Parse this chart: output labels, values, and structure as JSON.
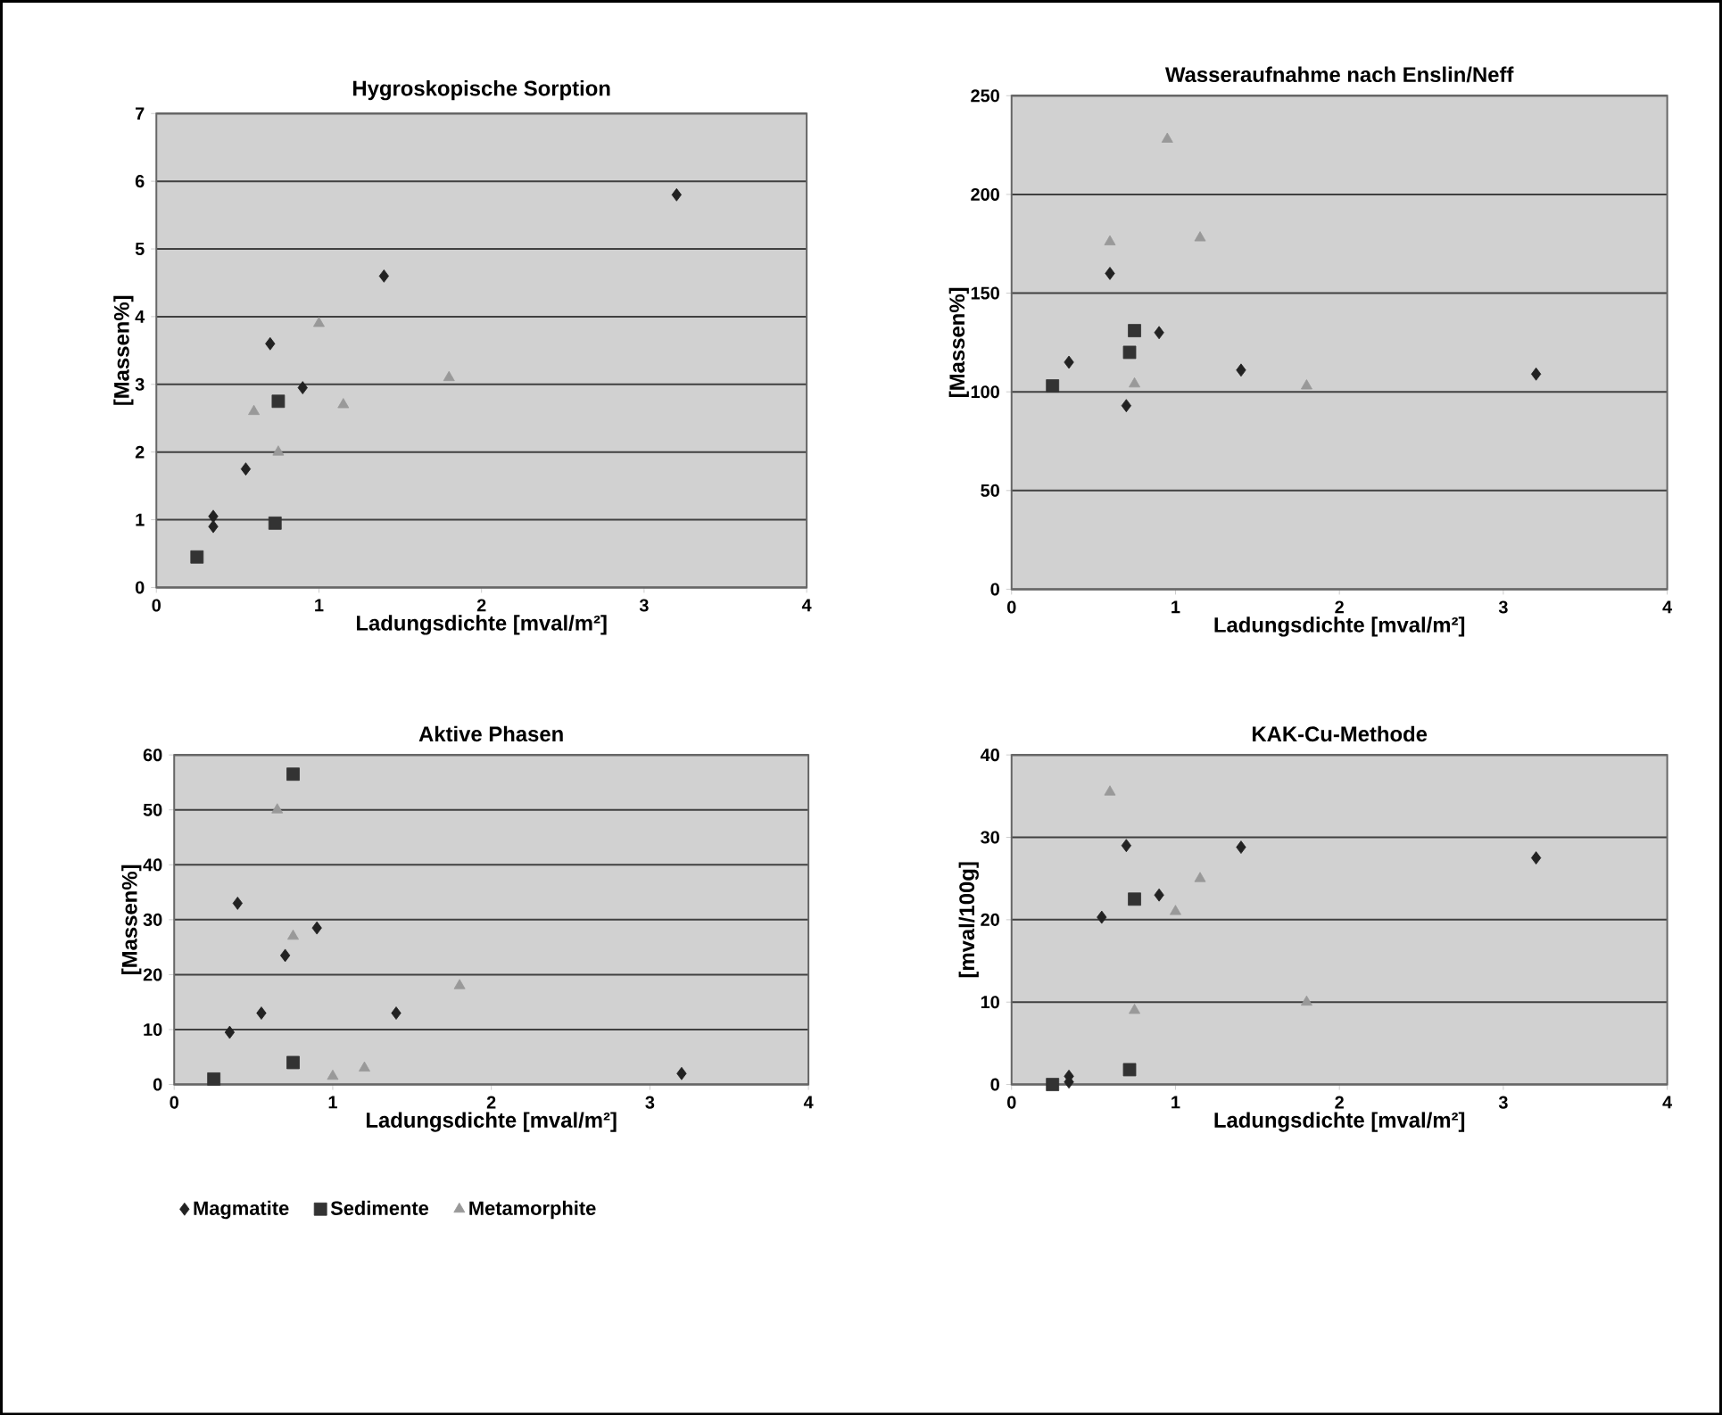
{
  "chart_data": [
    {
      "type": "scatter",
      "title": "Hygroskopische Sorption",
      "xlabel": "Ladungsdichte [mval/m²]",
      "ylabel": "[Massen%]",
      "xlim": [
        0,
        4
      ],
      "xticks": [
        0,
        1,
        2,
        3,
        4
      ],
      "ylim": [
        0,
        7
      ],
      "yticks": [
        0,
        1,
        2,
        3,
        4,
        5,
        6,
        7
      ],
      "grid": "y",
      "legend": false,
      "series": [
        {
          "color": "#222222",
          "marker": "diamond",
          "x": [
            3.2,
            1.4,
            0.7,
            0.9,
            0.55,
            0.35,
            0.35
          ],
          "values": [
            5.8,
            4.6,
            3.6,
            2.95,
            1.75,
            1.05,
            0.9
          ]
        },
        {
          "color": "#333333",
          "marker": "square",
          "x": [
            0.25,
            0.75,
            0.73
          ],
          "values": [
            0.45,
            2.75,
            0.95
          ]
        },
        {
          "color": "#999999",
          "marker": "triangle",
          "x": [
            1.0,
            1.8,
            0.6,
            1.15,
            0.75
          ],
          "values": [
            3.9,
            3.1,
            2.6,
            2.7,
            2.0
          ]
        }
      ]
    },
    {
      "type": "scatter",
      "title": "Wasseraufnahme nach Enslin/Neff",
      "xlabel": "Ladungsdichte [mval/m²]",
      "ylabel": "[Massen%]",
      "xlim": [
        0,
        4
      ],
      "xticks": [
        0,
        1,
        2,
        3,
        4
      ],
      "ylim": [
        0,
        250
      ],
      "yticks": [
        0,
        50,
        100,
        150,
        200,
        250
      ],
      "grid": "y",
      "legend": false,
      "series": [
        {
          "color": "#222222",
          "marker": "diamond",
          "x": [
            0.6,
            0.35,
            0.9,
            0.7,
            1.4,
            3.2
          ],
          "values": [
            160,
            115,
            130,
            93,
            111,
            109
          ]
        },
        {
          "color": "#333333",
          "marker": "square",
          "x": [
            0.25,
            0.75,
            0.72
          ],
          "values": [
            103,
            131,
            120
          ]
        },
        {
          "color": "#999999",
          "marker": "triangle",
          "x": [
            0.95,
            0.6,
            1.15,
            0.75,
            1.8
          ],
          "values": [
            228,
            176,
            178,
            104,
            103
          ]
        }
      ]
    },
    {
      "type": "scatter",
      "title": "Aktive Phasen",
      "xlabel": "Ladungsdichte [mval/m²]",
      "ylabel": "[Massen%]",
      "xlim": [
        0,
        4
      ],
      "xticks": [
        0,
        1,
        2,
        3,
        4
      ],
      "ylim": [
        0,
        60
      ],
      "yticks": [
        0,
        10,
        20,
        30,
        40,
        50,
        60
      ],
      "grid": "y",
      "legend": "bottom",
      "series": [
        {
          "name": "Magmatite",
          "color": "#222222",
          "marker": "diamond",
          "x": [
            0.4,
            0.9,
            0.7,
            0.55,
            0.35,
            1.4,
            3.2
          ],
          "values": [
            33,
            28.5,
            23.5,
            13,
            9.5,
            13,
            2
          ]
        },
        {
          "name": "Sedimente",
          "color": "#333333",
          "marker": "square",
          "x": [
            0.75,
            0.25,
            0.75
          ],
          "values": [
            56.5,
            1,
            4
          ]
        },
        {
          "name": "Metamorphite",
          "color": "#999999",
          "marker": "triangle",
          "x": [
            0.65,
            0.75,
            1.8,
            1.0,
            1.2
          ],
          "values": [
            50,
            27,
            18,
            1.5,
            3
          ]
        }
      ]
    },
    {
      "type": "scatter",
      "title": "KAK-Cu-Methode",
      "xlabel": "Ladungsdichte [mval/m²]",
      "ylabel": "[mval/100g]",
      "xlim": [
        0,
        4
      ],
      "xticks": [
        0,
        1,
        2,
        3,
        4
      ],
      "ylim": [
        0,
        40
      ],
      "yticks": [
        0,
        10,
        20,
        30,
        40
      ],
      "grid": "y",
      "legend": false,
      "series": [
        {
          "color": "#222222",
          "marker": "diamond",
          "x": [
            0.7,
            1.4,
            3.2,
            0.9,
            0.55,
            0.35,
            0.35
          ],
          "values": [
            29,
            28.8,
            27.5,
            23,
            20.3,
            1,
            0.3
          ]
        },
        {
          "color": "#333333",
          "marker": "square",
          "x": [
            0.75,
            0.25,
            0.72
          ],
          "values": [
            22.5,
            0,
            1.8
          ]
        },
        {
          "color": "#999999",
          "marker": "triangle",
          "x": [
            0.6,
            1.15,
            1.0,
            0.75,
            1.8
          ],
          "values": [
            35.5,
            25,
            21,
            9,
            10
          ]
        }
      ]
    }
  ]
}
